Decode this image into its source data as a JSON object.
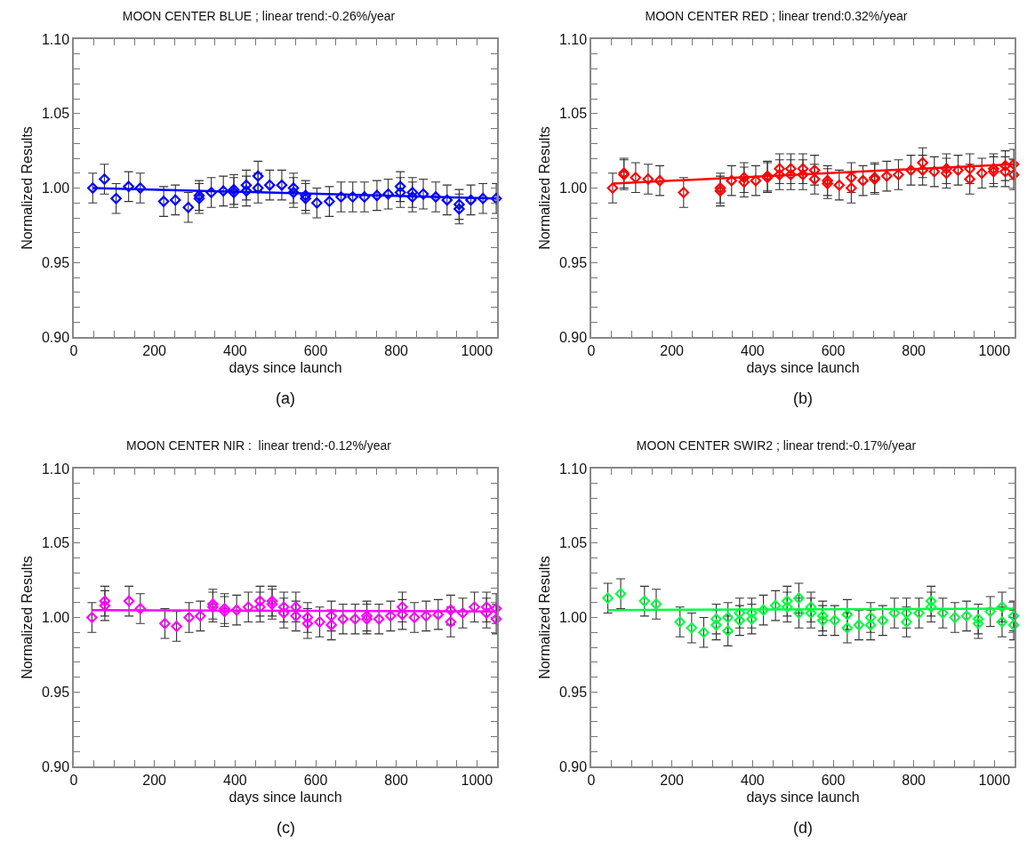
{
  "chart_data": [
    {
      "type": "scatter",
      "title": "MOON CENTER BLUE ; linear trend:-0.26%/year",
      "xlabel": "days since launch",
      "ylabel": "Normalized Results",
      "xlim": [
        0,
        1050
      ],
      "ylim": [
        0.9,
        1.1
      ],
      "xticks": [
        0,
        {
          "value": 50,
          "label": null
        },
        {
          "value": 100,
          "label": null
        },
        {
          "value": 150,
          "label": null
        },
        200,
        {
          "value": 250,
          "label": null
        },
        {
          "value": 300,
          "label": null
        },
        {
          "value": 350,
          "label": null
        },
        400,
        {
          "value": 450,
          "label": null
        },
        {
          "value": 500,
          "label": null
        },
        {
          "value": 550,
          "label": null
        },
        600,
        {
          "value": 650,
          "label": null
        },
        {
          "value": 700,
          "label": null
        },
        {
          "value": 750,
          "label": null
        },
        800,
        {
          "value": 850,
          "label": null
        },
        {
          "value": 900,
          "label": null
        },
        {
          "value": 950,
          "label": null
        },
        1000
      ],
      "yticks": [
        {
          "value": 0.9,
          "label": "0.90"
        },
        {
          "value": 0.91,
          "label": null
        },
        {
          "value": 0.92,
          "label": null
        },
        {
          "value": 0.93,
          "label": null
        },
        {
          "value": 0.94,
          "label": null
        },
        {
          "value": 0.95,
          "label": "0.95"
        },
        {
          "value": 0.96,
          "label": null
        },
        {
          "value": 0.97,
          "label": null
        },
        {
          "value": 0.98,
          "label": null
        },
        {
          "value": 0.99,
          "label": null
        },
        {
          "value": 1,
          "label": "1.00"
        },
        {
          "value": 1.01,
          "label": null
        },
        {
          "value": 1.02,
          "label": null
        },
        {
          "value": 1.03,
          "label": null
        },
        {
          "value": 1.04,
          "label": null
        },
        {
          "value": 1.05,
          "label": "1.05"
        },
        {
          "value": 1.06,
          "label": null
        },
        {
          "value": 1.07,
          "label": null
        },
        {
          "value": 1.08,
          "label": null
        },
        {
          "value": 1.09,
          "label": null
        },
        {
          "value": 1.1,
          "label": "1.10"
        }
      ],
      "annotations": [
        "(a)"
      ],
      "series": [
        {
          "marker": "diamond",
          "color": "#0000ff",
          "x": [
            47,
            76,
            105,
            136,
            165,
            223,
            252,
            284,
            311,
            311,
            341,
            371,
            397,
            397,
            428,
            428,
            457,
            457,
            486,
            516,
            545,
            545,
            575,
            575,
            603,
            634,
            663,
            692,
            721,
            752,
            780,
            810,
            810,
            840,
            840,
            867,
            898,
            926,
            956,
            956,
            985,
            1015,
            1048
          ],
          "values": [
            1.0,
            1.006,
            0.993,
            1.001,
            1.0,
            0.991,
            0.992,
            0.987,
            0.993,
            0.995,
            0.997,
            0.998,
            0.997,
            0.999,
            1.002,
            0.998,
            1.008,
            1.0,
            1.002,
            1.002,
            1.0,
            0.997,
            0.993,
            0.995,
            0.99,
            0.991,
            0.994,
            0.994,
            0.994,
            0.995,
            0.996,
            1.001,
            0.997,
            0.994,
            0.997,
            0.996,
            0.994,
            0.992,
            0.989,
            0.986,
            0.992,
            0.993,
            0.993
          ],
          "errors": [
            0.01,
            0.01,
            0.01,
            0.01,
            0.01,
            0.01,
            0.01,
            0.01,
            0.01,
            0.01,
            0.01,
            0.01,
            0.01,
            0.01,
            0.01,
            0.01,
            0.01,
            0.01,
            0.01,
            0.01,
            0.01,
            0.01,
            0.01,
            0.01,
            0.01,
            0.01,
            0.01,
            0.01,
            0.01,
            0.01,
            0.01,
            0.01,
            0.01,
            0.01,
            0.01,
            0.01,
            0.01,
            0.01,
            0.01,
            0.01,
            0.01,
            0.01,
            0.01
          ]
        },
        {
          "type": "line",
          "color": "#0000ff",
          "x": [
            47,
            1048
          ],
          "values": [
            1.0,
            0.993
          ]
        }
      ]
    },
    {
      "type": "scatter",
      "title": "MOON CENTER RED ; linear trend:0.32%/year",
      "xlabel": "days since launch",
      "ylabel": "Normalized Results",
      "xlim": [
        0,
        1050
      ],
      "ylim": [
        0.9,
        1.1
      ],
      "xticks": [
        0,
        {
          "value": 50,
          "label": null
        },
        {
          "value": 100,
          "label": null
        },
        {
          "value": 150,
          "label": null
        },
        200,
        {
          "value": 250,
          "label": null
        },
        {
          "value": 300,
          "label": null
        },
        {
          "value": 350,
          "label": null
        },
        400,
        {
          "value": 450,
          "label": null
        },
        {
          "value": 500,
          "label": null
        },
        {
          "value": 550,
          "label": null
        },
        600,
        {
          "value": 650,
          "label": null
        },
        {
          "value": 700,
          "label": null
        },
        {
          "value": 750,
          "label": null
        },
        800,
        {
          "value": 850,
          "label": null
        },
        {
          "value": 900,
          "label": null
        },
        {
          "value": 950,
          "label": null
        },
        1000
      ],
      "yticks": [
        {
          "value": 0.9,
          "label": "0.90"
        },
        {
          "value": 0.91,
          "label": null
        },
        {
          "value": 0.92,
          "label": null
        },
        {
          "value": 0.93,
          "label": null
        },
        {
          "value": 0.94,
          "label": null
        },
        {
          "value": 0.95,
          "label": "0.95"
        },
        {
          "value": 0.96,
          "label": null
        },
        {
          "value": 0.97,
          "label": null
        },
        {
          "value": 0.98,
          "label": null
        },
        {
          "value": 0.99,
          "label": null
        },
        {
          "value": 1,
          "label": "1.00"
        },
        {
          "value": 1.01,
          "label": null
        },
        {
          "value": 1.02,
          "label": null
        },
        {
          "value": 1.03,
          "label": null
        },
        {
          "value": 1.04,
          "label": null
        },
        {
          "value": 1.05,
          "label": "1.05"
        },
        {
          "value": 1.06,
          "label": null
        },
        {
          "value": 1.07,
          "label": null
        },
        {
          "value": 1.08,
          "label": null
        },
        {
          "value": 1.09,
          "label": null
        },
        {
          "value": 1.1,
          "label": "1.10"
        }
      ],
      "annotations": [
        "(b)"
      ],
      "series": [
        {
          "marker": "diamond",
          "color": "#ff0000",
          "x": [
            53,
            81,
            81,
            110,
            141,
            170,
            229,
            320,
            320,
            348,
            379,
            379,
            408,
            437,
            437,
            467,
            467,
            495,
            495,
            525,
            525,
            554,
            554,
            586,
            586,
            615,
            645,
            645,
            674,
            703,
            703,
            733,
            762,
            793,
            822,
            822,
            851,
            881,
            881,
            910,
            939,
            939,
            969,
            998,
            998,
            1027,
            1027,
            1048,
            1048
          ],
          "values": [
            1.0,
            1.01,
            1.009,
            1.007,
            1.006,
            1.005,
            0.997,
            1.0,
            0.998,
            1.005,
            1.007,
            1.004,
            1.005,
            1.008,
            1.007,
            1.013,
            1.009,
            1.013,
            1.009,
            1.013,
            1.009,
            1.012,
            1.006,
            1.005,
            1.003,
            1.002,
            1.007,
            1.0,
            1.005,
            1.007,
            1.006,
            1.008,
            1.009,
            1.012,
            1.017,
            1.012,
            1.011,
            1.013,
            1.01,
            1.012,
            1.013,
            1.006,
            1.01,
            1.013,
            1.011,
            1.015,
            1.011,
            1.016,
            1.009
          ],
          "errors": [
            0.01,
            0.01,
            0.01,
            0.01,
            0.01,
            0.01,
            0.01,
            0.01,
            0.01,
            0.01,
            0.01,
            0.01,
            0.01,
            0.01,
            0.01,
            0.01,
            0.01,
            0.01,
            0.01,
            0.01,
            0.01,
            0.01,
            0.01,
            0.01,
            0.01,
            0.01,
            0.01,
            0.01,
            0.01,
            0.01,
            0.01,
            0.01,
            0.01,
            0.01,
            0.01,
            0.01,
            0.01,
            0.01,
            0.01,
            0.01,
            0.01,
            0.01,
            0.01,
            0.01,
            0.01,
            0.01,
            0.01,
            0.01,
            0.01
          ]
        },
        {
          "type": "line",
          "color": "#ff0000",
          "x": [
            53,
            1048
          ],
          "values": [
            1.003,
            1.016
          ]
        }
      ]
    },
    {
      "type": "scatter",
      "title": "MOON CENTER NIR :  linear trend:-0.12%/year",
      "xlabel": "days since launch",
      "ylabel": "Normalized Results",
      "xlim": [
        0,
        1050
      ],
      "ylim": [
        0.9,
        1.1
      ],
      "xticks": [
        0,
        {
          "value": 50,
          "label": null
        },
        {
          "value": 100,
          "label": null
        },
        {
          "value": 150,
          "label": null
        },
        200,
        {
          "value": 250,
          "label": null
        },
        {
          "value": 300,
          "label": null
        },
        {
          "value": 350,
          "label": null
        },
        400,
        {
          "value": 450,
          "label": null
        },
        {
          "value": 500,
          "label": null
        },
        {
          "value": 550,
          "label": null
        },
        600,
        {
          "value": 650,
          "label": null
        },
        {
          "value": 700,
          "label": null
        },
        {
          "value": 750,
          "label": null
        },
        800,
        {
          "value": 850,
          "label": null
        },
        {
          "value": 900,
          "label": null
        },
        {
          "value": 950,
          "label": null
        },
        1000
      ],
      "yticks": [
        {
          "value": 0.9,
          "label": "0.90"
        },
        {
          "value": 0.91,
          "label": null
        },
        {
          "value": 0.92,
          "label": null
        },
        {
          "value": 0.93,
          "label": null
        },
        {
          "value": 0.94,
          "label": null
        },
        {
          "value": 0.95,
          "label": "0.95"
        },
        {
          "value": 0.96,
          "label": null
        },
        {
          "value": 0.97,
          "label": null
        },
        {
          "value": 0.98,
          "label": null
        },
        {
          "value": 0.99,
          "label": null
        },
        {
          "value": 1,
          "label": "1.00"
        },
        {
          "value": 1.01,
          "label": null
        },
        {
          "value": 1.02,
          "label": null
        },
        {
          "value": 1.03,
          "label": null
        },
        {
          "value": 1.04,
          "label": null
        },
        {
          "value": 1.05,
          "label": "1.05"
        },
        {
          "value": 1.06,
          "label": null
        },
        {
          "value": 1.07,
          "label": null
        },
        {
          "value": 1.08,
          "label": null
        },
        {
          "value": 1.09,
          "label": null
        },
        {
          "value": 1.1,
          "label": "1.10"
        }
      ],
      "annotations": [
        "(c)"
      ],
      "series": [
        {
          "marker": "diamond",
          "color": "#ff00ff",
          "x": [
            45,
            77,
            77,
            137,
            165,
            226,
            255,
            286,
            314,
            345,
            345,
            374,
            374,
            404,
            433,
            462,
            462,
            492,
            492,
            521,
            521,
            551,
            551,
            580,
            580,
            610,
            639,
            639,
            668,
            698,
            727,
            727,
            757,
            786,
            815,
            815,
            845,
            874,
            904,
            935,
            935,
            965,
            994,
            1024,
            1024,
            1048,
            1048
          ],
          "values": [
            1.0,
            1.011,
            1.008,
            1.011,
            1.006,
            0.996,
            0.994,
            1.0,
            1.001,
            1.009,
            1.007,
            1.006,
            1.004,
            1.005,
            1.007,
            1.011,
            1.007,
            1.011,
            1.009,
            1.007,
            1.003,
            1.007,
            1.001,
            1.0,
            0.996,
            0.997,
            1.001,
            0.995,
            0.999,
            0.999,
            1.001,
            0.999,
            0.999,
            1.001,
            1.007,
            1.002,
            1.0,
            1.001,
            1.002,
            1.005,
            0.997,
            1.003,
            1.007,
            1.007,
            1.003,
            1.006,
            0.999
          ],
          "errors": [
            0.01,
            0.01,
            0.01,
            0.01,
            0.01,
            0.01,
            0.01,
            0.01,
            0.01,
            0.01,
            0.01,
            0.01,
            0.01,
            0.01,
            0.01,
            0.01,
            0.01,
            0.01,
            0.01,
            0.01,
            0.01,
            0.01,
            0.01,
            0.01,
            0.01,
            0.01,
            0.01,
            0.01,
            0.01,
            0.01,
            0.01,
            0.01,
            0.01,
            0.01,
            0.01,
            0.01,
            0.01,
            0.01,
            0.01,
            0.01,
            0.01,
            0.01,
            0.01,
            0.01,
            0.01,
            0.01,
            0.01
          ]
        },
        {
          "type": "line",
          "color": "#ff00ff",
          "x": [
            45,
            1048
          ],
          "values": [
            1.005,
            1.004
          ]
        }
      ]
    },
    {
      "type": "scatter",
      "title": "MOON CENTER SWIR2 ; linear trend:-0.17%/year",
      "xlabel": "days since launch",
      "ylabel": "Normalized Results",
      "xlim": [
        0,
        1050
      ],
      "ylim": [
        0.9,
        1.1
      ],
      "xticks": [
        0,
        {
          "value": 50,
          "label": null
        },
        {
          "value": 100,
          "label": null
        },
        {
          "value": 150,
          "label": null
        },
        200,
        {
          "value": 250,
          "label": null
        },
        {
          "value": 300,
          "label": null
        },
        {
          "value": 350,
          "label": null
        },
        400,
        {
          "value": 450,
          "label": null
        },
        {
          "value": 500,
          "label": null
        },
        {
          "value": 550,
          "label": null
        },
        600,
        {
          "value": 650,
          "label": null
        },
        {
          "value": 700,
          "label": null
        },
        {
          "value": 750,
          "label": null
        },
        800,
        {
          "value": 850,
          "label": null
        },
        {
          "value": 900,
          "label": null
        },
        {
          "value": 950,
          "label": null
        },
        1000
      ],
      "yticks": [
        {
          "value": 0.9,
          "label": "0.90"
        },
        {
          "value": 0.91,
          "label": null
        },
        {
          "value": 0.92,
          "label": null
        },
        {
          "value": 0.93,
          "label": null
        },
        {
          "value": 0.94,
          "label": null
        },
        {
          "value": 0.95,
          "label": "0.95"
        },
        {
          "value": 0.96,
          "label": null
        },
        {
          "value": 0.97,
          "label": null
        },
        {
          "value": 0.98,
          "label": null
        },
        {
          "value": 0.99,
          "label": null
        },
        {
          "value": 1,
          "label": "1.00"
        },
        {
          "value": 1.01,
          "label": null
        },
        {
          "value": 1.02,
          "label": null
        },
        {
          "value": 1.03,
          "label": null
        },
        {
          "value": 1.04,
          "label": null
        },
        {
          "value": 1.05,
          "label": "1.05"
        },
        {
          "value": 1.06,
          "label": null
        },
        {
          "value": 1.07,
          "label": null
        },
        {
          "value": 1.08,
          "label": null
        },
        {
          "value": 1.09,
          "label": null
        },
        {
          "value": 1.1,
          "label": "1.10"
        }
      ],
      "annotations": [
        "(d)"
      ],
      "series": [
        {
          "marker": "diamond",
          "color": "#00ff40",
          "x": [
            41,
            73,
            132,
            161,
            220,
            249,
            279,
            310,
            310,
            339,
            339,
            368,
            368,
            398,
            398,
            427,
            457,
            486,
            486,
            515,
            515,
            545,
            545,
            574,
            574,
            604,
            635,
            635,
            664,
            693,
            693,
            723,
            752,
            782,
            782,
            813,
            843,
            843,
            872,
            902,
            931,
            960,
            960,
            990,
            1019,
            1019,
            1048,
            1048
          ],
          "values": [
            1.013,
            1.016,
            1.011,
            1.009,
            0.997,
            0.993,
            0.99,
            0.999,
            0.995,
            1.0,
            0.991,
            1.003,
            0.998,
            1.003,
            0.999,
            1.005,
            1.008,
            1.011,
            1.007,
            1.013,
            1.003,
            1.007,
            1.003,
            1.001,
            0.998,
            0.998,
            1.002,
            0.993,
            0.995,
            1.0,
            0.995,
            0.998,
            1.003,
            1.003,
            0.997,
            1.003,
            1.011,
            1.007,
            1.003,
            1.0,
            1.001,
            0.999,
            0.996,
            1.004,
            1.007,
            0.997,
            1.001,
            0.995
          ],
          "errors": [
            0.01,
            0.01,
            0.01,
            0.01,
            0.01,
            0.01,
            0.01,
            0.01,
            0.01,
            0.01,
            0.01,
            0.01,
            0.01,
            0.01,
            0.01,
            0.01,
            0.01,
            0.01,
            0.01,
            0.01,
            0.01,
            0.01,
            0.01,
            0.01,
            0.01,
            0.01,
            0.01,
            0.01,
            0.01,
            0.01,
            0.01,
            0.01,
            0.01,
            0.01,
            0.01,
            0.01,
            0.01,
            0.01,
            0.01,
            0.01,
            0.01,
            0.01,
            0.01,
            0.01,
            0.01,
            0.01,
            0.01,
            0.01
          ]
        },
        {
          "type": "line",
          "color": "#00ff40",
          "x": [
            41,
            1048
          ],
          "values": [
            1.005,
            1.006
          ]
        }
      ]
    }
  ]
}
